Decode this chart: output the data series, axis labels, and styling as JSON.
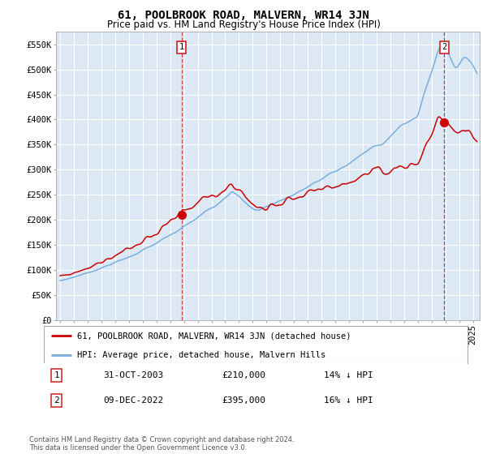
{
  "title": "61, POOLBROOK ROAD, MALVERN, WR14 3JN",
  "subtitle": "Price paid vs. HM Land Registry's House Price Index (HPI)",
  "ylabel_ticks": [
    "£0",
    "£50K",
    "£100K",
    "£150K",
    "£200K",
    "£250K",
    "£300K",
    "£350K",
    "£400K",
    "£450K",
    "£500K",
    "£550K"
  ],
  "ylim": [
    0,
    575000
  ],
  "xlim_start": 1994.7,
  "xlim_end": 2025.5,
  "sale1_x": 2003.83,
  "sale1_y": 210000,
  "sale2_x": 2022.92,
  "sale2_y": 395000,
  "sale1_date": "31-OCT-2003",
  "sale1_price": "£210,000",
  "sale1_pct": "14% ↓ HPI",
  "sale2_date": "09-DEC-2022",
  "sale2_price": "£395,000",
  "sale2_pct": "16% ↓ HPI",
  "line_color_sale": "#cc0000",
  "line_color_hpi": "#7aaddb",
  "vline_color": "#cc0000",
  "legend_label_sale": "61, POOLBROOK ROAD, MALVERN, WR14 3JN (detached house)",
  "legend_label_hpi": "HPI: Average price, detached house, Malvern Hills",
  "footer": "Contains HM Land Registry data © Crown copyright and database right 2024.\nThis data is licensed under the Open Government Licence v3.0.",
  "background_color": "#ffffff",
  "plot_bg_color": "#dce9f5",
  "grid_color": "#ffffff",
  "title_fontsize": 10,
  "subtitle_fontsize": 8.5,
  "tick_fontsize": 7.5,
  "legend_fontsize": 7.5,
  "footer_fontsize": 6.0
}
